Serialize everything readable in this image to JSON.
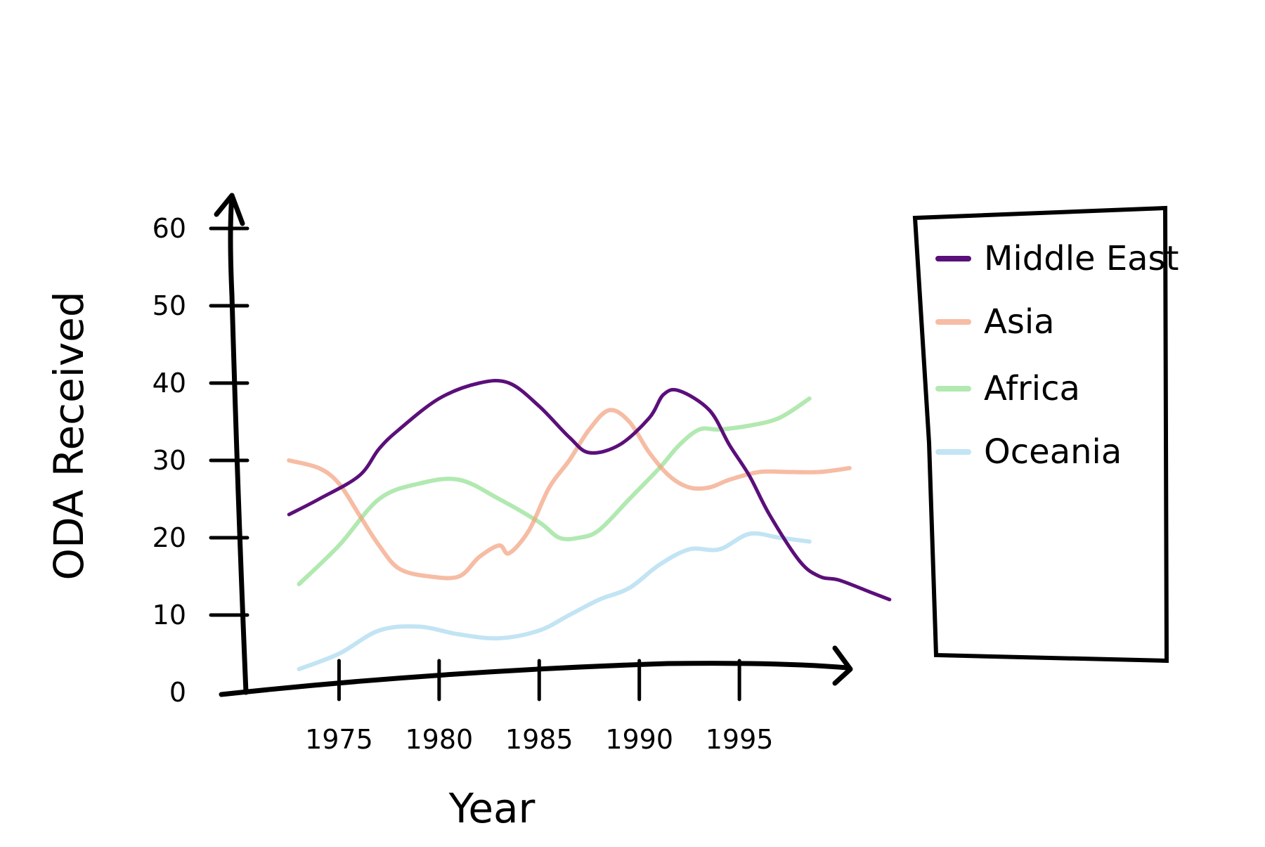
{
  "chart_data": {
    "type": "line",
    "title": "",
    "xlabel": "Year",
    "ylabel": "ODA Received",
    "xlim": [
      1970,
      2003
    ],
    "ylim": [
      0,
      70
    ],
    "x_ticks": [
      1975,
      1980,
      1985,
      1990,
      1995
    ],
    "y_ticks": [
      0,
      10,
      20,
      30,
      40,
      50,
      60
    ],
    "grid": false,
    "legend_position": "right",
    "series": [
      {
        "name": "Middle East",
        "color": "#5b0f7a",
        "opacity": 1.0,
        "x": [
          1972.5,
          1974,
          1976,
          1977,
          1978,
          1980,
          1982,
          1983.5,
          1985,
          1986.5,
          1987.5,
          1989,
          1990.5,
          1991.2,
          1992,
          1993.5,
          1994.5,
          1995.5,
          1996.5,
          1998,
          1999,
          2000,
          2001.5,
          2002.5
        ],
        "y": [
          23,
          25,
          28,
          31.5,
          34,
          38,
          40,
          40,
          37,
          33,
          31,
          32,
          35.5,
          38.5,
          39,
          36.5,
          32,
          28,
          23,
          17,
          15,
          14.5,
          13,
          12
        ]
      },
      {
        "name": "Asia",
        "color": "#f2a07e",
        "opacity": 0.7,
        "x": [
          1972.5,
          1974,
          1975,
          1976,
          1977,
          1978,
          1979.5,
          1981,
          1982,
          1983,
          1983.5,
          1984.5,
          1985.5,
          1986.5,
          1987.5,
          1988.5,
          1989.5,
          1990.5,
          1991.5,
          1992.5,
          1993.5,
          1994.5,
          1996,
          1997.5,
          1999,
          2000.5
        ],
        "y": [
          30,
          29,
          27,
          23,
          19,
          16,
          15,
          15,
          17.5,
          19,
          18,
          21,
          26.5,
          30,
          34,
          36.5,
          35,
          31,
          28,
          26.5,
          26.5,
          27.5,
          28.5,
          28.5,
          28.5,
          29
        ]
      },
      {
        "name": "Africa",
        "color": "#90e090",
        "opacity": 0.7,
        "x": [
          1973,
          1975,
          1977,
          1979,
          1981,
          1983,
          1985,
          1986,
          1987,
          1988,
          1989.5,
          1991,
          1992,
          1993,
          1994,
          1995.5,
          1997,
          1998.5
        ],
        "y": [
          14,
          19,
          25,
          27,
          27.5,
          25,
          22,
          20,
          20,
          21,
          25,
          29,
          32,
          34,
          34,
          34.5,
          35.5,
          38
        ]
      },
      {
        "name": "Oceania",
        "color": "#a8d8f0",
        "opacity": 0.7,
        "x": [
          1973,
          1975,
          1977,
          1979,
          1981,
          1983,
          1985,
          1986.5,
          1988,
          1989.5,
          1991,
          1992.5,
          1994,
          1995.5,
          1997,
          1998.5
        ],
        "y": [
          3,
          5,
          8,
          8.5,
          7.5,
          7,
          8,
          10,
          12,
          13.5,
          16.5,
          18.5,
          18.5,
          20.5,
          20,
          19.5
        ]
      }
    ]
  }
}
